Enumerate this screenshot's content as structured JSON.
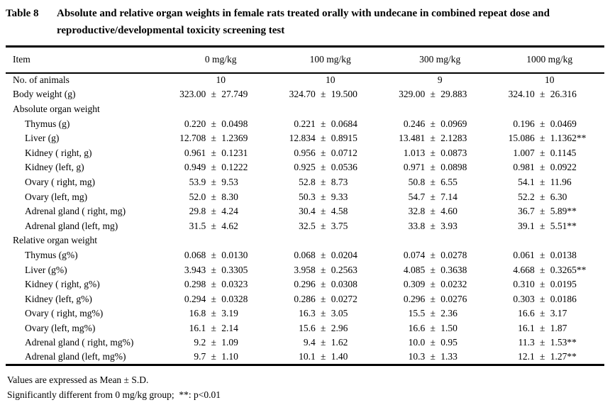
{
  "caption": {
    "label": "Table 8",
    "text": "Absolute and relative organ weights in female rats treated orally with undecane in combined repeat dose and reproductive/developmental toxicity screening test"
  },
  "table": {
    "pm_symbol": "±",
    "columns": [
      "Item",
      "0 mg/kg",
      "100 mg/kg",
      "300 mg/kg",
      "1000 mg/kg"
    ],
    "rows": [
      {
        "label": "No. of animals",
        "indent": 0,
        "section": false,
        "values": [
          "10",
          "10",
          "9",
          "10"
        ]
      },
      {
        "label": "Body weight (g)",
        "indent": 0,
        "section": false,
        "values": [
          {
            "mean": "323.00",
            "sd": "27.749",
            "sig": ""
          },
          {
            "mean": "324.70",
            "sd": "19.500",
            "sig": ""
          },
          {
            "mean": "329.00",
            "sd": "29.883",
            "sig": ""
          },
          {
            "mean": "324.10",
            "sd": "26.316",
            "sig": ""
          }
        ]
      },
      {
        "label": "Absolute organ weight",
        "indent": 0,
        "section": true,
        "values": [
          "",
          "",
          "",
          ""
        ]
      },
      {
        "label": "Thymus (g)",
        "indent": 1,
        "section": false,
        "values": [
          {
            "mean": "0.220",
            "sd": "0.0498",
            "sig": ""
          },
          {
            "mean": "0.221",
            "sd": "0.0684",
            "sig": ""
          },
          {
            "mean": "0.246",
            "sd": "0.0969",
            "sig": ""
          },
          {
            "mean": "0.196",
            "sd": "0.0469",
            "sig": ""
          }
        ]
      },
      {
        "label": "Liver (g)",
        "indent": 1,
        "section": false,
        "values": [
          {
            "mean": "12.708",
            "sd": "1.2369",
            "sig": ""
          },
          {
            "mean": "12.834",
            "sd": "0.8915",
            "sig": ""
          },
          {
            "mean": "13.481",
            "sd": "2.1283",
            "sig": ""
          },
          {
            "mean": "15.086",
            "sd": "1.1362",
            "sig": "**"
          }
        ]
      },
      {
        "label": "Kidney ( right, g)",
        "indent": 1,
        "section": false,
        "values": [
          {
            "mean": "0.961",
            "sd": "0.1231",
            "sig": ""
          },
          {
            "mean": "0.956",
            "sd": "0.0712",
            "sig": ""
          },
          {
            "mean": "1.013",
            "sd": "0.0873",
            "sig": ""
          },
          {
            "mean": "1.007",
            "sd": "0.1145",
            "sig": ""
          }
        ]
      },
      {
        "label": "Kidney (left, g)",
        "indent": 1,
        "section": false,
        "values": [
          {
            "mean": "0.949",
            "sd": "0.1222",
            "sig": ""
          },
          {
            "mean": "0.925",
            "sd": "0.0536",
            "sig": ""
          },
          {
            "mean": "0.971",
            "sd": "0.0898",
            "sig": ""
          },
          {
            "mean": "0.981",
            "sd": "0.0922",
            "sig": ""
          }
        ]
      },
      {
        "label": "Ovary ( right, mg)",
        "indent": 1,
        "section": false,
        "values": [
          {
            "mean": "53.9",
            "sd": "9.53",
            "sig": ""
          },
          {
            "mean": "52.8",
            "sd": "8.73",
            "sig": ""
          },
          {
            "mean": "50.8",
            "sd": "6.55",
            "sig": ""
          },
          {
            "mean": "54.1",
            "sd": "11.96",
            "sig": ""
          }
        ]
      },
      {
        "label": "Ovary (left, mg)",
        "indent": 1,
        "section": false,
        "values": [
          {
            "mean": "52.0",
            "sd": "8.30",
            "sig": ""
          },
          {
            "mean": "50.3",
            "sd": "9.33",
            "sig": ""
          },
          {
            "mean": "54.7",
            "sd": "7.14",
            "sig": ""
          },
          {
            "mean": "52.2",
            "sd": "6.30",
            "sig": ""
          }
        ]
      },
      {
        "label": "Adrenal gland ( right, mg)",
        "indent": 1,
        "section": false,
        "values": [
          {
            "mean": "29.8",
            "sd": "4.24",
            "sig": ""
          },
          {
            "mean": "30.4",
            "sd": "4.58",
            "sig": ""
          },
          {
            "mean": "32.8",
            "sd": "4.60",
            "sig": ""
          },
          {
            "mean": "36.7",
            "sd": "5.89",
            "sig": "**"
          }
        ]
      },
      {
        "label": "Adrenal gland (left, mg)",
        "indent": 1,
        "section": false,
        "values": [
          {
            "mean": "31.5",
            "sd": "4.62",
            "sig": ""
          },
          {
            "mean": "32.5",
            "sd": "3.75",
            "sig": ""
          },
          {
            "mean": "33.8",
            "sd": "3.93",
            "sig": ""
          },
          {
            "mean": "39.1",
            "sd": "5.51",
            "sig": "**"
          }
        ]
      },
      {
        "label": "Relative organ weight",
        "indent": 0,
        "section": true,
        "values": [
          "",
          "",
          "",
          ""
        ]
      },
      {
        "label": "Thymus (g%)",
        "indent": 1,
        "section": false,
        "values": [
          {
            "mean": "0.068",
            "sd": "0.0130",
            "sig": ""
          },
          {
            "mean": "0.068",
            "sd": "0.0204",
            "sig": ""
          },
          {
            "mean": "0.074",
            "sd": "0.0278",
            "sig": ""
          },
          {
            "mean": "0.061",
            "sd": "0.0138",
            "sig": ""
          }
        ]
      },
      {
        "label": "Liver (g%)",
        "indent": 1,
        "section": false,
        "values": [
          {
            "mean": "3.943",
            "sd": "0.3305",
            "sig": ""
          },
          {
            "mean": "3.958",
            "sd": "0.2563",
            "sig": ""
          },
          {
            "mean": "4.085",
            "sd": "0.3638",
            "sig": ""
          },
          {
            "mean": "4.668",
            "sd": "0.3265",
            "sig": "**"
          }
        ]
      },
      {
        "label": "Kidney ( right, g%)",
        "indent": 1,
        "section": false,
        "values": [
          {
            "mean": "0.298",
            "sd": "0.0323",
            "sig": ""
          },
          {
            "mean": "0.296",
            "sd": "0.0308",
            "sig": ""
          },
          {
            "mean": "0.309",
            "sd": "0.0232",
            "sig": ""
          },
          {
            "mean": "0.310",
            "sd": "0.0195",
            "sig": ""
          }
        ]
      },
      {
        "label": "Kidney (left, g%)",
        "indent": 1,
        "section": false,
        "values": [
          {
            "mean": "0.294",
            "sd": "0.0328",
            "sig": ""
          },
          {
            "mean": "0.286",
            "sd": "0.0272",
            "sig": ""
          },
          {
            "mean": "0.296",
            "sd": "0.0276",
            "sig": ""
          },
          {
            "mean": "0.303",
            "sd": "0.0186",
            "sig": ""
          }
        ]
      },
      {
        "label": "Ovary ( right, mg%)",
        "indent": 1,
        "section": false,
        "values": [
          {
            "mean": "16.8",
            "sd": "3.19",
            "sig": ""
          },
          {
            "mean": "16.3",
            "sd": "3.05",
            "sig": ""
          },
          {
            "mean": "15.5",
            "sd": "2.36",
            "sig": ""
          },
          {
            "mean": "16.6",
            "sd": "3.17",
            "sig": ""
          }
        ]
      },
      {
        "label": "Ovary (left, mg%)",
        "indent": 1,
        "section": false,
        "values": [
          {
            "mean": "16.1",
            "sd": "2.14",
            "sig": ""
          },
          {
            "mean": "15.6",
            "sd": "2.96",
            "sig": ""
          },
          {
            "mean": "16.6",
            "sd": "1.50",
            "sig": ""
          },
          {
            "mean": "16.1",
            "sd": "1.87",
            "sig": ""
          }
        ]
      },
      {
        "label": "Adrenal gland ( right, mg%)",
        "indent": 1,
        "section": false,
        "values": [
          {
            "mean": "9.2",
            "sd": "1.09",
            "sig": ""
          },
          {
            "mean": "9.4",
            "sd": "1.62",
            "sig": ""
          },
          {
            "mean": "10.0",
            "sd": "0.95",
            "sig": ""
          },
          {
            "mean": "11.3",
            "sd": "1.53",
            "sig": "**"
          }
        ]
      },
      {
        "label": "Adrenal gland (left, mg%)",
        "indent": 1,
        "section": false,
        "values": [
          {
            "mean": "9.7",
            "sd": "1.10",
            "sig": ""
          },
          {
            "mean": "10.1",
            "sd": "1.40",
            "sig": ""
          },
          {
            "mean": "10.3",
            "sd": "1.33",
            "sig": ""
          },
          {
            "mean": "12.1",
            "sd": "1.27",
            "sig": "**"
          }
        ]
      }
    ]
  },
  "footnotes": [
    "Values are expressed as Mean ± S.D.",
    "Significantly different from 0 mg/kg group;  **: p<0.01"
  ]
}
